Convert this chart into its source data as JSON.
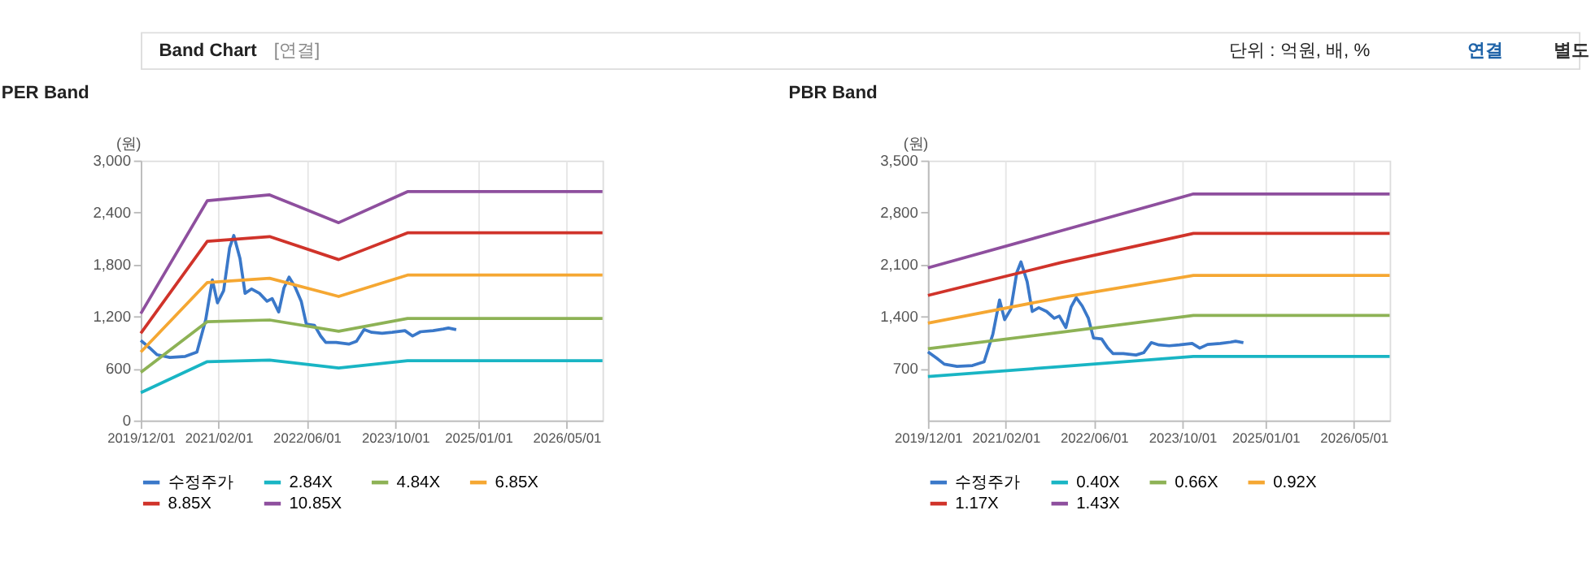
{
  "chart_data": [
    {
      "type": "line",
      "title": "PER Band",
      "ylabel": "(원)",
      "annotations": [
        "Band Chart",
        "[연결]",
        "단위 : 억원, 배, %",
        "연결",
        "별도"
      ],
      "xlim": [
        "2019-12-01",
        "2026-11-15"
      ],
      "xticks": [
        {
          "value": "2019-12-01",
          "label": "2019/12/01"
        },
        {
          "value": "2021-02-01",
          "label": "2021/02/01"
        },
        {
          "value": "2022-06-01",
          "label": "2022/06/01"
        },
        {
          "value": "2023-10-01",
          "label": "2023/10/01"
        },
        {
          "value": "2025-01-01",
          "label": "2025/01/01"
        },
        {
          "value": "2026-05-01",
          "label": "2026/05/01"
        }
      ],
      "ylim": [
        0,
        3000
      ],
      "yticks": [
        0,
        600,
        {
          "value": 1200,
          "label": "1,200"
        },
        {
          "value": 1800,
          "label": "1,800"
        },
        {
          "value": 2400,
          "label": "2,400"
        },
        {
          "value": 3000,
          "label": "3,000"
        }
      ],
      "grid": "x",
      "legend": "bottom",
      "marker": "none",
      "line_style": "solid",
      "series": [
        {
          "name": "수정주가",
          "color": "#3a78c9",
          "x": [
            "2019-12-01",
            "2020-01-18",
            "2020-02-29",
            "2020-05-09",
            "2020-08-02",
            "2020-10-05",
            "2020-11-22",
            "2020-12-29",
            "2021-01-26",
            "2021-03-01",
            "2021-04-03",
            "2021-04-26",
            "2021-05-30",
            "2021-06-27",
            "2021-08-02",
            "2021-09-14",
            "2021-10-26",
            "2021-11-23",
            "2021-12-29",
            "2022-01-27",
            "2022-02-24",
            "2022-03-29",
            "2022-05-02",
            "2022-05-30",
            "2022-07-14",
            "2022-08-17",
            "2022-09-14",
            "2022-11-10",
            "2023-01-19",
            "2023-03-02",
            "2023-04-13",
            "2023-05-25",
            "2023-07-21",
            "2023-09-15",
            "2023-11-24",
            "2024-01-05",
            "2024-02-17",
            "2024-04-27",
            "2024-06-22",
            "2024-07-20",
            "2024-09-01"
          ],
          "values": [
            925,
            839,
            759,
            728,
            740,
            790,
            1160,
            1623,
            1357,
            1499,
            1993,
            2135,
            1869,
            1468,
            1518,
            1468,
            1376,
            1407,
            1252,
            1530,
            1654,
            1542,
            1376,
            1111,
            1098,
            975,
            901,
            901,
            882,
            913,
            1049,
            1018,
            1006,
            1018,
            1037,
            975,
            1024,
            1037,
            1055,
            1067,
            1049
          ]
        },
        {
          "name": "2.84X",
          "color": "#19b5c4",
          "x": [
            "2019-12-01",
            "2020-12-01",
            "2021-11-09",
            "2022-11-24",
            "2023-12-08",
            "2026-11-15"
          ],
          "values": [
            321,
            679,
            697,
            605,
            691,
            691
          ]
        },
        {
          "name": "4.84X",
          "color": "#8db255",
          "x": [
            "2019-12-01",
            "2020-12-01",
            "2021-11-09",
            "2022-11-24",
            "2023-12-08",
            "2026-11-15"
          ],
          "values": [
            555,
            1141,
            1160,
            1030,
            1178,
            1178
          ]
        },
        {
          "name": "6.85X",
          "color": "#f5a732",
          "x": [
            "2019-12-01",
            "2020-12-01",
            "2021-11-09",
            "2022-11-24",
            "2023-12-08",
            "2026-11-15"
          ],
          "values": [
            790,
            1592,
            1641,
            1431,
            1678,
            1678
          ]
        },
        {
          "name": "8.85X",
          "color": "#d0332a",
          "x": [
            "2019-12-01",
            "2020-12-01",
            "2021-11-09",
            "2022-11-24",
            "2023-12-08",
            "2026-11-15"
          ],
          "values": [
            1006,
            2067,
            2122,
            1857,
            2166,
            2166
          ]
        },
        {
          "name": "10.85X",
          "color": "#8e4f9e",
          "x": [
            "2019-12-01",
            "2020-12-01",
            "2021-11-09",
            "2022-11-24",
            "2023-12-08",
            "2026-11-15"
          ],
          "values": [
            1234,
            2536,
            2604,
            2283,
            2641,
            2641
          ]
        }
      ]
    },
    {
      "type": "line",
      "title": "PBR Band",
      "ylabel": "(원)",
      "xlim": [
        "2019-12-01",
        "2026-11-15"
      ],
      "xticks": [
        {
          "value": "2019-12-01",
          "label": "2019/12/01"
        },
        {
          "value": "2021-02-01",
          "label": "2021/02/01"
        },
        {
          "value": "2022-06-01",
          "label": "2022/06/01"
        },
        {
          "value": "2023-10-01",
          "label": "2023/10/01"
        },
        {
          "value": "2025-01-01",
          "label": "2025/01/01"
        },
        {
          "value": "2026-05-01",
          "label": "2026/05/01"
        }
      ],
      "ylim": [
        0,
        3500
      ],
      "yticks": [
        700,
        {
          "value": 1400,
          "label": "1,400"
        },
        {
          "value": 2100,
          "label": "2,100"
        },
        {
          "value": 2800,
          "label": "2,800"
        },
        {
          "value": 3500,
          "label": "3,500"
        }
      ],
      "grid": "x",
      "legend": "bottom",
      "marker": "none",
      "line_style": "solid",
      "series": [
        {
          "name": "수정주가",
          "color": "#3a78c9",
          "x": [
            "2019-12-01",
            "2020-01-18",
            "2020-02-29",
            "2020-05-09",
            "2020-08-02",
            "2020-10-05",
            "2020-11-22",
            "2020-12-29",
            "2021-01-26",
            "2021-03-01",
            "2021-04-03",
            "2021-04-26",
            "2021-05-30",
            "2021-06-27",
            "2021-08-02",
            "2021-09-14",
            "2021-10-26",
            "2021-11-23",
            "2021-12-29",
            "2022-01-27",
            "2022-02-24",
            "2022-03-29",
            "2022-05-02",
            "2022-05-30",
            "2022-07-14",
            "2022-08-17",
            "2022-09-14",
            "2022-11-10",
            "2023-01-19",
            "2023-03-02",
            "2023-04-13",
            "2023-05-25",
            "2023-07-21",
            "2023-09-15",
            "2023-11-24",
            "2024-01-05",
            "2024-02-17",
            "2024-04-27",
            "2024-06-22",
            "2024-07-20",
            "2024-09-01"
          ],
          "values": [
            925,
            839,
            759,
            728,
            740,
            790,
            1160,
            1623,
            1357,
            1499,
            1993,
            2135,
            1869,
            1468,
            1518,
            1468,
            1376,
            1407,
            1252,
            1530,
            1654,
            1542,
            1376,
            1111,
            1098,
            975,
            901,
            901,
            882,
            913,
            1049,
            1018,
            1006,
            1018,
            1037,
            975,
            1024,
            1037,
            1055,
            1067,
            1049
          ]
        },
        {
          "name": "0.40X",
          "color": "#19b5c4",
          "x": [
            "2019-12-01",
            "2021-12-01",
            "2023-12-01",
            "2026-11-15"
          ],
          "values": [
            593,
            725,
            863,
            863
          ]
        },
        {
          "name": "0.66X",
          "color": "#8db255",
          "x": [
            "2019-12-01",
            "2021-12-01",
            "2023-12-01",
            "2026-11-15"
          ],
          "values": [
            966,
            1187,
            1415,
            1415
          ]
        },
        {
          "name": "0.92X",
          "color": "#f5a732",
          "x": [
            "2019-12-01",
            "2021-12-01",
            "2023-12-01",
            "2026-11-15"
          ],
          "values": [
            1311,
            1656,
            1953,
            1953
          ]
        },
        {
          "name": "1.17X",
          "color": "#d0332a",
          "x": [
            "2019-12-01",
            "2021-12-01",
            "2023-12-01",
            "2026-11-15"
          ],
          "values": [
            1684,
            2125,
            2519,
            2519
          ]
        },
        {
          "name": "1.43X",
          "color": "#8e4f9e",
          "x": [
            "2019-12-01",
            "2021-12-01",
            "2023-12-01",
            "2026-11-15"
          ],
          "values": [
            2056,
            2553,
            3050,
            3050
          ]
        }
      ]
    }
  ]
}
